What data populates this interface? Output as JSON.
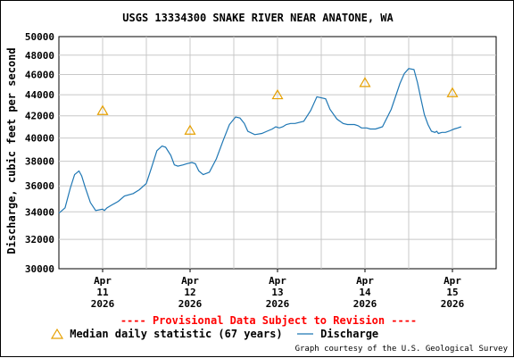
{
  "chart_data": {
    "type": "line",
    "title": "USGS 13334300 SNAKE RIVER NEAR ANATONE, WA",
    "ylabel": "Discharge, cubic feet per second",
    "xlabel": "",
    "ylim": [
      30000,
      50000
    ],
    "yscale": "log",
    "yticks": [
      "30000",
      "32000",
      "34000",
      "36000",
      "38000",
      "40000",
      "42000",
      "44000",
      "46000",
      "48000",
      "50000"
    ],
    "xlim_days": [
      10.5,
      15.5
    ],
    "xticks": [
      {
        "day": 11,
        "month": "Apr",
        "date": "11",
        "year": "2026"
      },
      {
        "day": 12,
        "month": "Apr",
        "date": "12",
        "year": "2026"
      },
      {
        "day": 13,
        "month": "Apr",
        "date": "13",
        "year": "2026"
      },
      {
        "day": 14,
        "month": "Apr",
        "date": "14",
        "year": "2026"
      },
      {
        "day": 15,
        "month": "Apr",
        "date": "15",
        "year": "2026"
      }
    ],
    "grid": true,
    "legend_placement": "bottom",
    "series": [
      {
        "name": "Discharge",
        "color": "#1f77b4",
        "style": "line",
        "x": [
          10.5,
          10.57,
          10.63,
          10.68,
          10.73,
          10.76,
          10.8,
          10.86,
          10.92,
          11.0,
          11.02,
          11.05,
          11.1,
          11.18,
          11.25,
          11.35,
          11.42,
          11.5,
          11.56,
          11.62,
          11.68,
          11.72,
          11.78,
          11.82,
          11.86,
          11.92,
          11.96,
          12.02,
          12.06,
          12.1,
          12.15,
          12.22,
          12.3,
          12.38,
          12.45,
          12.52,
          12.57,
          12.62,
          12.66,
          12.74,
          12.82,
          12.88,
          12.94,
          12.98,
          13.02,
          13.06,
          13.1,
          13.15,
          13.2,
          13.3,
          13.38,
          13.45,
          13.55,
          13.6,
          13.68,
          13.75,
          13.8,
          13.84,
          13.88,
          13.92,
          13.96,
          14.02,
          14.06,
          14.12,
          14.2,
          14.3,
          14.4,
          14.45,
          14.5,
          14.56,
          14.6,
          14.64,
          14.68,
          14.72,
          14.76,
          14.8,
          14.82,
          14.84,
          14.88,
          14.92,
          14.96,
          15.02,
          15.06,
          15.1
        ],
        "y": [
          33900,
          34300,
          35800,
          36900,
          37200,
          36800,
          35900,
          34700,
          34100,
          34200,
          34100,
          34300,
          34500,
          34800,
          35200,
          35400,
          35700,
          36200,
          37500,
          38900,
          39300,
          39200,
          38500,
          37700,
          37600,
          37700,
          37800,
          37900,
          37800,
          37200,
          36900,
          37100,
          38200,
          39800,
          41200,
          41900,
          41800,
          41300,
          40600,
          40300,
          40400,
          40600,
          40800,
          41000,
          40900,
          41000,
          41200,
          41300,
          41300,
          41500,
          42500,
          43800,
          43600,
          42600,
          41700,
          41300,
          41200,
          41200,
          41200,
          41100,
          40900,
          40900,
          40800,
          40800,
          41000,
          42600,
          45100,
          46100,
          46600,
          46500,
          45200,
          43600,
          42100,
          41200,
          40600,
          40500,
          40600,
          40400,
          40500,
          40500,
          40600,
          40800,
          40900,
          41000
        ]
      },
      {
        "name": "Median daily statistic (67 years)",
        "color": "#e6a000",
        "style": "triangle-markers",
        "x": [
          11.0,
          12.0,
          13.0,
          14.0,
          15.0
        ],
        "y": [
          42500,
          40700,
          44000,
          45200,
          44200
        ]
      }
    ]
  },
  "footer": {
    "provisional_text": "---- Provisional Data Subject to Revision ----",
    "legend_median": "Median daily statistic (67 years)",
    "legend_discharge": "Discharge",
    "credit": "Graph courtesy of the U.S. Geological Survey"
  }
}
